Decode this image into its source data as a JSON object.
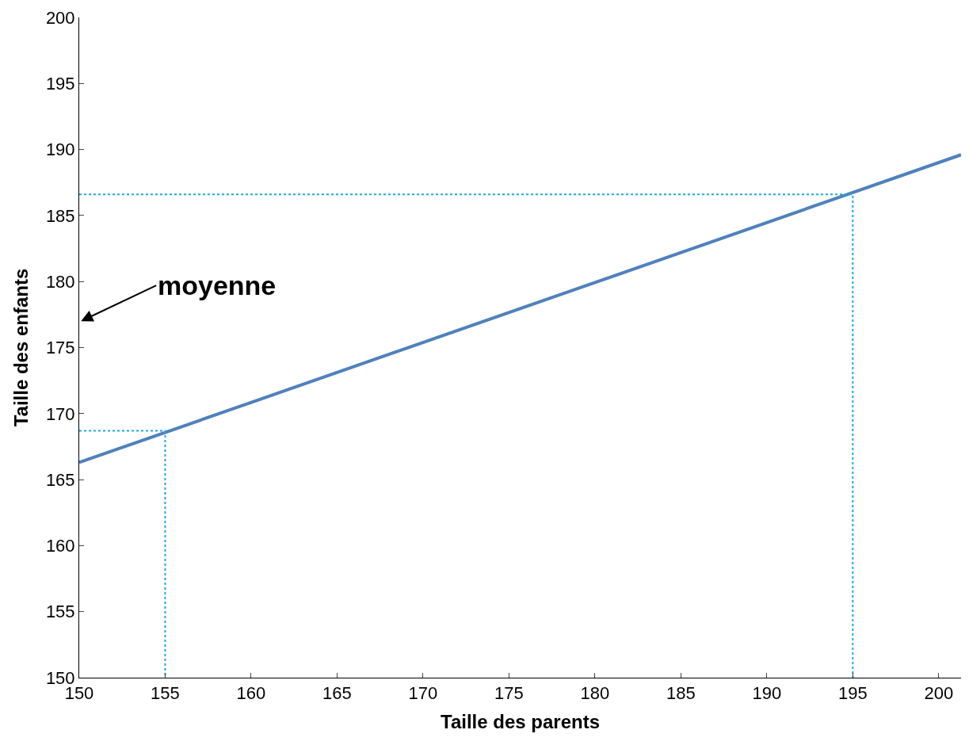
{
  "chart_data": {
    "type": "line",
    "xlabel": "Taille des parents",
    "ylabel": "Taille des enfants",
    "xlim": [
      150,
      201.3
    ],
    "ylim": [
      150,
      200
    ],
    "xticks": [
      150,
      155,
      160,
      165,
      170,
      175,
      180,
      185,
      190,
      195,
      200
    ],
    "yticks": [
      150,
      155,
      160,
      165,
      170,
      175,
      180,
      185,
      190,
      195,
      200
    ],
    "marker": "none",
    "series": [
      {
        "color": "#4f81bd",
        "x": [
          150,
          201.3
        ],
        "values": [
          166.3,
          189.6
        ],
        "line_style": "solid"
      },
      {
        "color": "#1ea8e0",
        "x": [
          150,
          155,
          155
        ],
        "values": [
          168.7,
          168.7,
          150
        ],
        "line_style": "dotted"
      },
      {
        "color": "#1ea8e0",
        "x": [
          150,
          195,
          195
        ],
        "values": [
          186.6,
          186.6,
          150
        ],
        "line_style": "dotted"
      }
    ],
    "annotations": [
      "moyenne"
    ]
  }
}
